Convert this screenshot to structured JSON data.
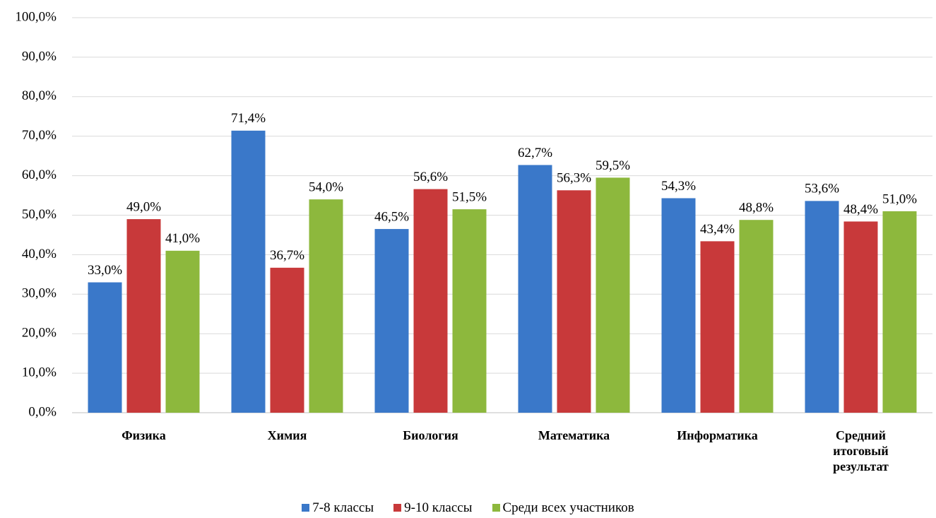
{
  "chart_data": {
    "type": "bar",
    "categories": [
      "Физика",
      "Химия",
      "Биология",
      "Математика",
      "Информатика",
      "Средний итоговый результат"
    ],
    "series": [
      {
        "name": "7-8 классы",
        "color": "#3a78c9",
        "values": [
          33.0,
          71.4,
          46.5,
          62.7,
          54.3,
          53.6
        ],
        "value_labels": [
          "33,0%",
          "71,4%",
          "46,5%",
          "62,7%",
          "54,3%",
          "53,6%"
        ]
      },
      {
        "name": "9-10 классы",
        "color": "#c8393a",
        "values": [
          49.0,
          36.7,
          56.6,
          56.3,
          43.4,
          48.4
        ],
        "value_labels": [
          "49,0%",
          "36,7%",
          "56,6%",
          "56,3%",
          "43,4%",
          "48,4%"
        ]
      },
      {
        "name": "Среди всех участников",
        "color": "#8db83d",
        "values": [
          41.0,
          54.0,
          51.5,
          59.5,
          48.8,
          51.0
        ],
        "value_labels": [
          "41,0%",
          "54,0%",
          "51,5%",
          "59,5%",
          "48,8%",
          "51,0%"
        ]
      }
    ],
    "ylim": [
      0,
      100
    ],
    "yticks": [
      {
        "value": 0,
        "label": "0,0%"
      },
      {
        "value": 10,
        "label": "10,0%"
      },
      {
        "value": 20,
        "label": "20,0%"
      },
      {
        "value": 30,
        "label": "30,0%"
      },
      {
        "value": 40,
        "label": "40,0%"
      },
      {
        "value": 50,
        "label": "50,0%"
      },
      {
        "value": 60,
        "label": "60,0%"
      },
      {
        "value": 70,
        "label": "70,0%"
      },
      {
        "value": 80,
        "label": "80,0%"
      },
      {
        "value": 90,
        "label": "90,0%"
      },
      {
        "value": 100,
        "label": "100,0%"
      }
    ],
    "grid": true,
    "legend": "bottom"
  }
}
